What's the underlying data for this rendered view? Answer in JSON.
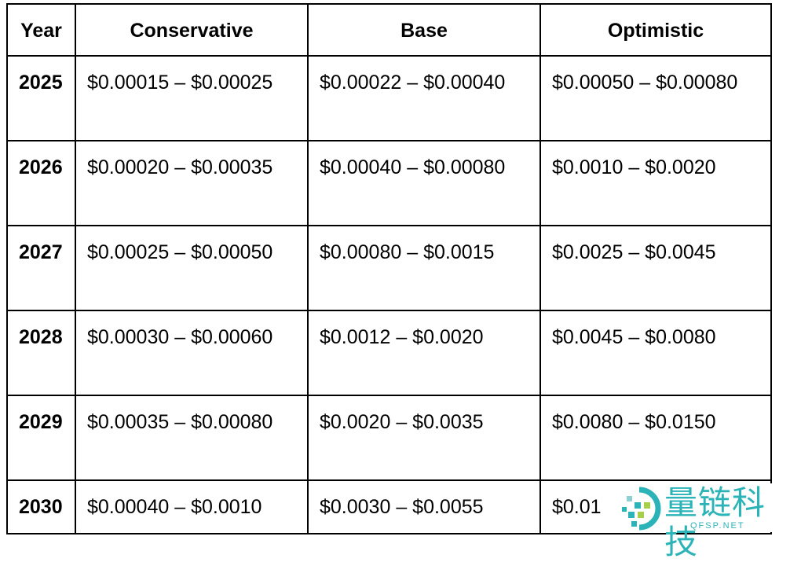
{
  "headers": [
    "Year",
    "Conservative",
    "Base",
    "Optimistic"
  ],
  "rows": [
    {
      "year": "2025",
      "conservative": "$0.00015 – $0.00025",
      "base": "$0.00022 – $0.00040",
      "optimistic": "$0.00050 – $0.00080"
    },
    {
      "year": "2026",
      "conservative": "$0.00020 – $0.00035",
      "base": "$0.00040 – $0.00080",
      "optimistic": "$0.0010 – $0.0020"
    },
    {
      "year": "2027",
      "conservative": "$0.00025 – $0.00050",
      "base": "$0.00080 – $0.0015",
      "optimistic": "$0.0025 – $0.0045"
    },
    {
      "year": "2028",
      "conservative": "$0.00030 – $0.00060",
      "base": "$0.0012 – $0.0020",
      "optimistic": "$0.0045 – $0.0080"
    },
    {
      "year": "2029",
      "conservative": "$0.00035 – $0.00080",
      "base": "$0.0020 – $0.0035",
      "optimistic": "$0.0080 – $0.0150"
    },
    {
      "year": "2030",
      "conservative": "$0.00040 – $0.0010",
      "base": "$0.0030 – $0.0055",
      "optimistic": "$0.01"
    }
  ],
  "watermark": {
    "text": "量链科技",
    "sub": "QFSP.NET",
    "color": "#2bb3b8"
  }
}
